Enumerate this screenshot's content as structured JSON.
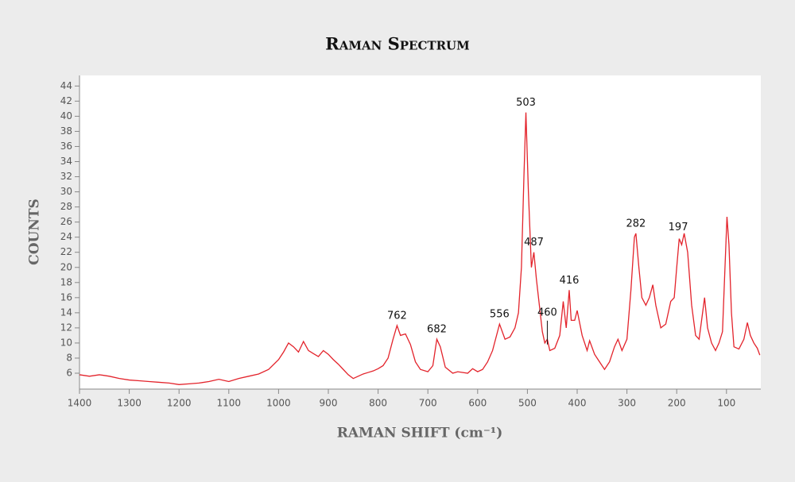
{
  "chart_data": {
    "type": "line",
    "title": "Raman Spectrum",
    "x_label": "RAMAN SHIFT (cm⁻¹)",
    "y_label": "COUNTS",
    "color": "#e3232b",
    "xlim": [
      1400,
      31
    ],
    "ylim": [
      3.9,
      45.4
    ],
    "xticks": [
      1400,
      1300,
      1200,
      1100,
      1000,
      900,
      800,
      700,
      600,
      500,
      400,
      300,
      200,
      100
    ],
    "yticks": [
      6,
      8,
      10,
      12,
      14,
      16,
      18,
      20,
      22,
      24,
      26,
      28,
      30,
      32,
      34,
      36,
      38,
      40,
      42,
      44
    ],
    "x": [
      1400,
      1380,
      1360,
      1340,
      1320,
      1300,
      1280,
      1260,
      1240,
      1220,
      1200,
      1180,
      1160,
      1140,
      1120,
      1100,
      1080,
      1060,
      1040,
      1020,
      1000,
      990,
      980,
      970,
      960,
      950,
      940,
      930,
      920,
      910,
      900,
      890,
      880,
      870,
      860,
      850,
      840,
      830,
      820,
      810,
      800,
      790,
      780,
      770,
      762,
      755,
      745,
      735,
      725,
      715,
      700,
      690,
      682,
      675,
      665,
      650,
      640,
      620,
      610,
      600,
      590,
      580,
      570,
      556,
      545,
      535,
      525,
      518,
      512,
      507,
      503,
      498,
      492,
      487,
      482,
      476,
      470,
      465,
      460,
      455,
      445,
      435,
      428,
      422,
      416,
      412,
      405,
      400,
      390,
      380,
      375,
      365,
      355,
      345,
      335,
      325,
      318,
      310,
      300,
      292,
      285,
      282,
      276,
      270,
      262,
      255,
      248,
      242,
      232,
      222,
      212,
      205,
      200,
      195,
      190,
      185,
      178,
      170,
      162,
      155,
      148,
      144,
      138,
      130,
      122,
      115,
      108,
      103,
      99,
      95,
      90,
      85,
      75,
      65,
      58,
      52,
      45,
      38,
      33
    ],
    "values": [
      5.8,
      5.6,
      5.8,
      5.6,
      5.3,
      5.1,
      5.0,
      4.9,
      4.8,
      4.7,
      4.5,
      4.6,
      4.7,
      4.9,
      5.2,
      4.9,
      5.3,
      5.6,
      5.9,
      6.5,
      7.8,
      8.8,
      10.0,
      9.5,
      8.8,
      10.2,
      9.0,
      8.6,
      8.2,
      9.0,
      8.5,
      7.8,
      7.2,
      6.5,
      5.8,
      5.3,
      5.6,
      5.9,
      6.1,
      6.3,
      6.6,
      7.0,
      8.0,
      10.5,
      12.3,
      11.0,
      11.2,
      9.8,
      7.5,
      6.5,
      6.2,
      7.0,
      10.5,
      9.5,
      6.8,
      6.0,
      6.2,
      6.0,
      6.6,
      6.2,
      6.5,
      7.5,
      9.0,
      12.5,
      10.5,
      10.8,
      12.0,
      14.0,
      20.0,
      32.0,
      40.5,
      30.0,
      20.0,
      22.0,
      18.5,
      15.0,
      11.5,
      10.0,
      10.5,
      9.0,
      9.3,
      11.0,
      15.5,
      12.0,
      17.0,
      13.0,
      13.0,
      14.3,
      11.0,
      9.0,
      10.3,
      8.5,
      7.5,
      6.5,
      7.5,
      9.5,
      10.5,
      9.0,
      10.5,
      17.0,
      24.0,
      24.5,
      20.0,
      16.0,
      15.0,
      16.0,
      17.7,
      15.0,
      12.0,
      12.5,
      15.5,
      16.0,
      20.0,
      23.8,
      23.0,
      24.5,
      22.0,
      15.0,
      11.0,
      10.5,
      14.0,
      16.0,
      12.0,
      10.0,
      9.0,
      10.0,
      11.5,
      20.0,
      26.7,
      23.0,
      14.0,
      9.5,
      9.2,
      10.5,
      12.7,
      11.0,
      10.0,
      9.3,
      8.4
    ],
    "annotations": [
      {
        "text": "762",
        "x": 762,
        "y": 12.3
      },
      {
        "text": "682",
        "x": 682,
        "y": 10.5
      },
      {
        "text": "556",
        "x": 556,
        "y": 12.5
      },
      {
        "text": "503",
        "x": 503,
        "y": 40.5
      },
      {
        "text": "487",
        "x": 487,
        "y": 22.0
      },
      {
        "text": "460",
        "x": 460,
        "y": 9.8,
        "leader": true
      },
      {
        "text": "416",
        "x": 416,
        "y": 17.0
      },
      {
        "text": "282",
        "x": 282,
        "y": 24.5
      },
      {
        "text": "197",
        "x": 197,
        "y": 24.0
      }
    ]
  }
}
